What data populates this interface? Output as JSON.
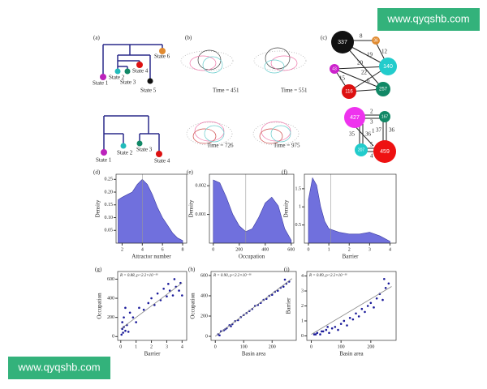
{
  "watermarks": [
    "www.qyqshb.com",
    "www.qyqshb.com"
  ],
  "panels": {
    "a": {
      "label": "(a)",
      "top_states": [
        "State 6",
        "State 4",
        "State 2",
        "State 3",
        "State 1",
        "State 5"
      ],
      "bottom_states": [
        "State 1",
        "State 2",
        "State 3",
        "State 4"
      ]
    },
    "b": {
      "label": "(b)",
      "times": [
        "Time = 451",
        "Time = 551",
        "Time = 726",
        "Time = 975"
      ]
    },
    "c": {
      "label": "(c)",
      "top_nodes": [
        "337",
        "36",
        "140",
        "257",
        "116",
        "43"
      ],
      "top_edges": [
        "8",
        "19",
        "20",
        "15",
        "6",
        "12",
        "22"
      ],
      "bottom_nodes": [
        "427",
        "167",
        "207",
        "459"
      ],
      "bottom_edges": [
        "2",
        "3",
        "1",
        "35",
        "36",
        "37",
        "36",
        "5",
        "4"
      ]
    }
  },
  "chart_data": [
    {
      "type": "area",
      "label": "(d)",
      "x_label": "Attractor number",
      "y_label": "Density",
      "color": "#7070dd",
      "x": [
        1.6,
        2,
        2.5,
        3,
        3.5,
        4,
        4.5,
        5,
        5.5,
        6,
        6.5,
        7,
        7.5,
        8
      ],
      "y": [
        0.17,
        0.18,
        0.19,
        0.2,
        0.23,
        0.25,
        0.23,
        0.19,
        0.14,
        0.1,
        0.07,
        0.04,
        0.02,
        0.01
      ],
      "marker_x": 4,
      "xlim": [
        1.4,
        8.4
      ],
      "xticks": [
        2,
        4,
        6,
        8
      ],
      "ylim": [
        0,
        0.27
      ],
      "yticks": [
        0.05,
        {
          "value": 0.1,
          "label": "0.10"
        },
        0.15,
        {
          "value": 0.2,
          "label": "0.20"
        },
        0.25
      ]
    },
    {
      "type": "area",
      "label": "(e)",
      "x_label": "Occupation",
      "y_label": "Density",
      "color": "#7070dd",
      "x": [
        0,
        50,
        100,
        150,
        200,
        250,
        300,
        350,
        400,
        450,
        500,
        550,
        600
      ],
      "y": [
        0.0022,
        0.0021,
        0.0016,
        0.001,
        0.0006,
        0.0004,
        0.0005,
        0.0009,
        0.0014,
        0.0016,
        0.0013,
        0.0005,
        0.0001
      ],
      "marker_x": 250,
      "xlim": [
        -30,
        620
      ],
      "xticks": [
        0,
        200,
        400,
        600
      ],
      "ylim": [
        0,
        0.0024
      ],
      "yticks": [
        0.001,
        0.002
      ]
    },
    {
      "type": "area",
      "label": "(f)",
      "x_label": "Barrier",
      "y_label": "Density",
      "color": "#7070dd",
      "x": [
        0,
        0.2,
        0.4,
        0.6,
        0.8,
        1,
        1.5,
        2,
        2.5,
        3,
        3.5,
        4
      ],
      "y": [
        1.2,
        1.8,
        1.6,
        1.0,
        0.6,
        0.4,
        0.3,
        0.25,
        0.25,
        0.3,
        0.2,
        0.05
      ],
      "marker_x": 1.1,
      "xlim": [
        -0.2,
        4.3
      ],
      "xticks": [
        0,
        1,
        2,
        3,
        4
      ],
      "ylim": [
        0,
        1.9
      ],
      "yticks": [
        0.5,
        1,
        1.5
      ]
    },
    {
      "type": "scatter",
      "label": "(g)",
      "x_label": "Barrier",
      "y_label": "Occupation",
      "color": "#1a1a9a",
      "annotation": "R = 0.88, p<2.2×10⁻¹⁶",
      "x": [
        0.05,
        0.1,
        0.1,
        0.15,
        0.2,
        0.2,
        0.3,
        0.4,
        0.5,
        0.6,
        0.8,
        1,
        1.2,
        1.5,
        1.8,
        2,
        2.2,
        2.4,
        2.6,
        2.8,
        3,
        3.1,
        3.2,
        3.4,
        3.5,
        3.6,
        3.8,
        3.9,
        4,
        0.3
      ],
      "y": [
        20,
        80,
        150,
        40,
        100,
        200,
        60,
        120,
        50,
        250,
        200,
        150,
        300,
        280,
        350,
        400,
        330,
        450,
        380,
        500,
        420,
        550,
        480,
        430,
        600,
        520,
        480,
        560,
        430,
        300
      ],
      "fit": {
        "x": [
          0,
          4
        ],
        "y": [
          80,
          560
        ]
      },
      "xlim": [
        -0.2,
        4.3
      ],
      "xticks": [
        0,
        1,
        2,
        3,
        4
      ],
      "ylim": [
        -40,
        680
      ],
      "yticks": [
        0,
        200,
        400,
        600
      ]
    },
    {
      "type": "scatter",
      "label": "(h)",
      "x_label": "Basin area",
      "y_label": "Occupation",
      "color": "#1a1a9a",
      "annotation": "R = 0.90, p<2.2×10⁻¹⁶",
      "x": [
        10,
        20,
        30,
        40,
        50,
        60,
        70,
        80,
        90,
        100,
        110,
        120,
        130,
        140,
        150,
        160,
        170,
        180,
        190,
        200,
        210,
        220,
        230,
        240,
        250,
        260,
        15,
        35,
        55,
        245
      ],
      "y": [
        20,
        50,
        60,
        80,
        110,
        120,
        150,
        160,
        190,
        210,
        230,
        250,
        270,
        300,
        310,
        330,
        360,
        370,
        400,
        410,
        440,
        450,
        480,
        490,
        520,
        540,
        10,
        70,
        100,
        560
      ],
      "fit": {
        "x": [
          0,
          270
        ],
        "y": [
          0,
          570
        ]
      },
      "xlim": [
        -15,
        285
      ],
      "xticks": [
        0,
        100,
        200
      ],
      "ylim": [
        -40,
        640
      ],
      "yticks": [
        0,
        200,
        400,
        600
      ]
    },
    {
      "type": "scatter",
      "label": "(i)",
      "x_label": "Basin area",
      "y_label": "Barrier",
      "color": "#1a1a9a",
      "annotation": "R = 0.89, p<2.2×10⁻¹⁶",
      "x": [
        10,
        20,
        30,
        40,
        50,
        60,
        70,
        80,
        90,
        100,
        110,
        120,
        130,
        140,
        150,
        160,
        170,
        180,
        190,
        200,
        210,
        220,
        230,
        240,
        250,
        260,
        15,
        35,
        55,
        245
      ],
      "y": [
        0.1,
        0.2,
        0.1,
        0.3,
        0.4,
        0.2,
        0.5,
        0.6,
        0.4,
        0.8,
        1,
        0.7,
        1.2,
        1.1,
        1.5,
        1.3,
        1.8,
        1.6,
        2,
        2.2,
        1.9,
        2.5,
        2.8,
        2.4,
        3.2,
        3.5,
        0.1,
        0.3,
        0.6,
        3.8
      ],
      "fit": {
        "x": [
          0,
          270
        ],
        "y": [
          0.1,
          3.3
        ]
      },
      "xlim": [
        -15,
        285
      ],
      "xticks": [
        0,
        100,
        200
      ],
      "ylim": [
        -0.3,
        4.3
      ],
      "yticks": [
        0,
        1,
        2,
        3,
        4
      ]
    }
  ]
}
